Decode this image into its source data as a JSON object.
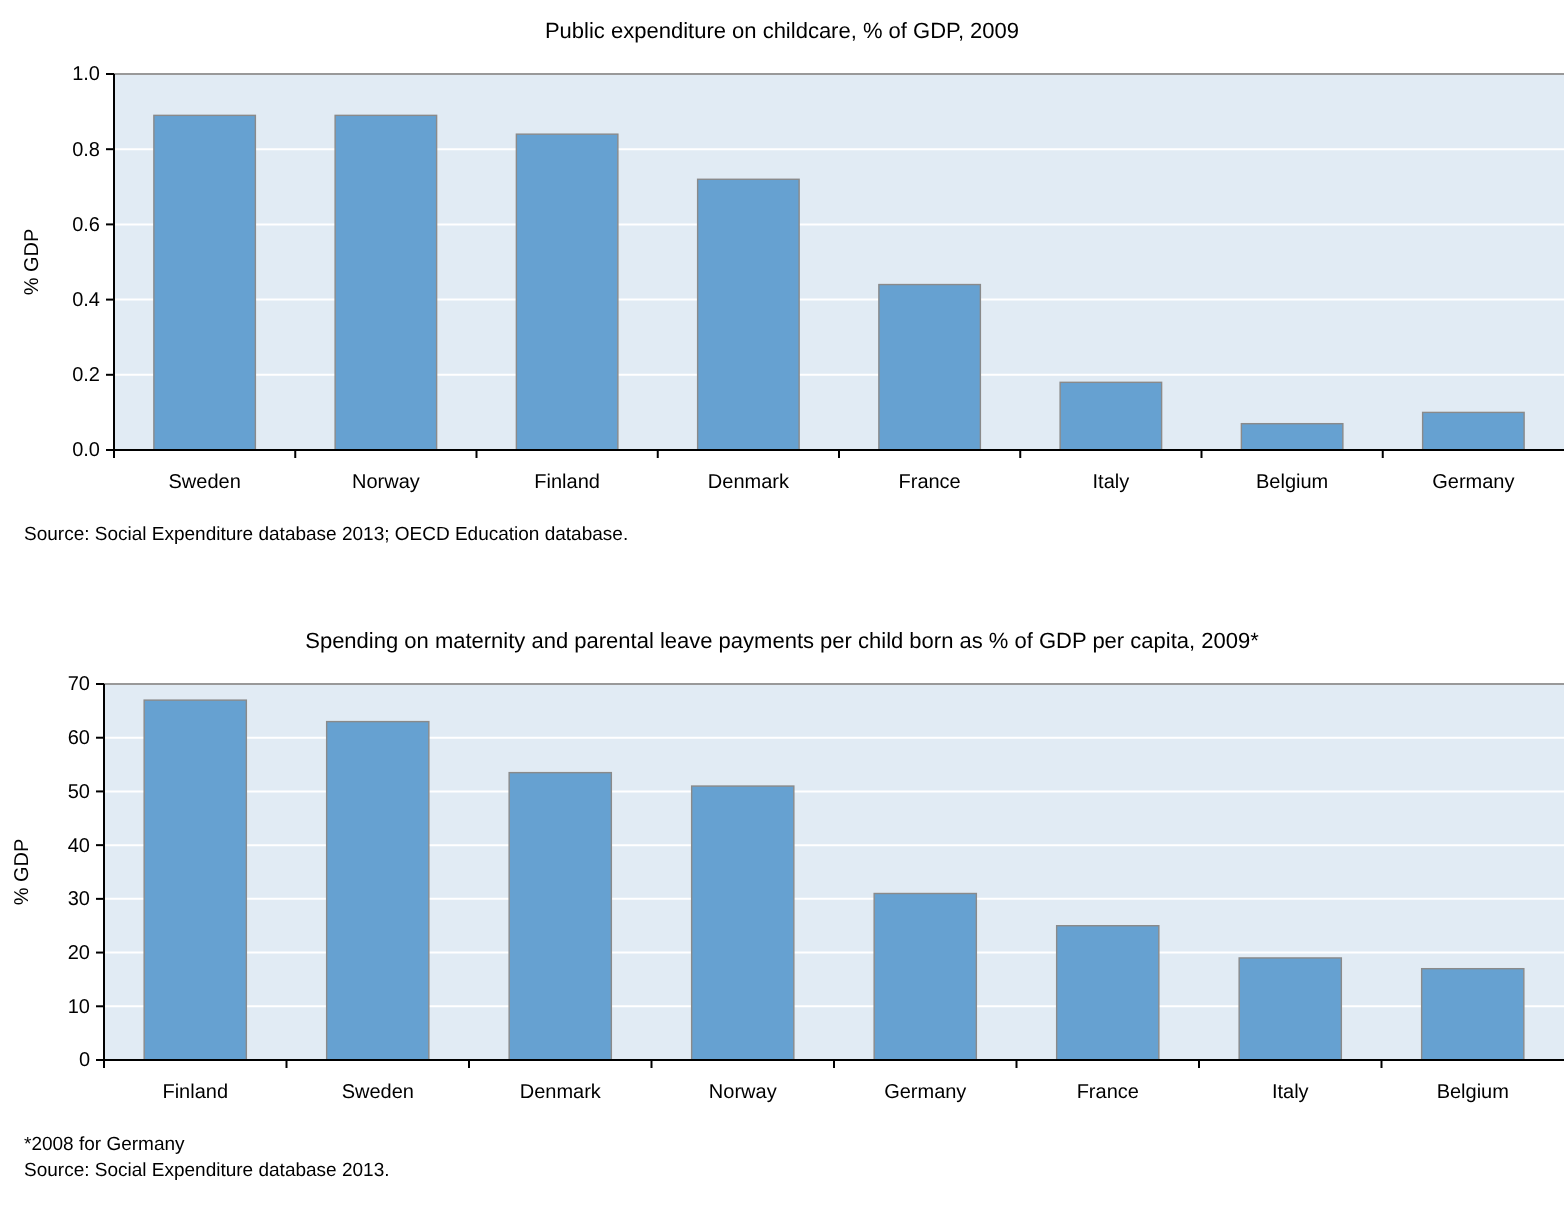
{
  "chart_data": [
    {
      "type": "bar",
      "title": "Public expenditure on childcare, % of GDP, 2009",
      "ylabel": "% GDP",
      "categories": [
        "Sweden",
        "Norway",
        "Finland",
        "Denmark",
        "France",
        "Italy",
        "Belgium",
        "Germany"
      ],
      "values": [
        0.89,
        0.89,
        0.84,
        0.72,
        0.44,
        0.18,
        0.07,
        0.1
      ],
      "color": "#66a1d1",
      "ylim": [
        0,
        1
      ],
      "yticks": [
        {
          "value": 0,
          "label": "0.0"
        },
        {
          "value": 0.2,
          "label": "0.2"
        },
        {
          "value": 0.4,
          "label": "0.4"
        },
        {
          "value": 0.6,
          "label": "0.6"
        },
        {
          "value": 0.8,
          "label": "0.8"
        },
        {
          "value": 1,
          "label": "1.0"
        }
      ],
      "grid": "y",
      "annotations": [
        "Source: Social Expenditure database 2013; OECD Education database."
      ]
    },
    {
      "type": "bar",
      "title": "Spending on maternity and parental leave payments per child born as % of GDP per capita, 2009*",
      "ylabel": "% GDP",
      "categories": [
        "Finland",
        "Sweden",
        "Denmark",
        "Norway",
        "Germany",
        "France",
        "Italy",
        "Belgium"
      ],
      "values": [
        67,
        63,
        53.5,
        51,
        31,
        25,
        19,
        17
      ],
      "color": "#66a1d1",
      "ylim": [
        0,
        70
      ],
      "yticks": [
        0,
        10,
        20,
        30,
        40,
        50,
        60,
        70
      ],
      "grid": "y",
      "annotations": [
        "*2008 for Germany",
        "Source: Social Expenditure database 2013."
      ]
    }
  ]
}
